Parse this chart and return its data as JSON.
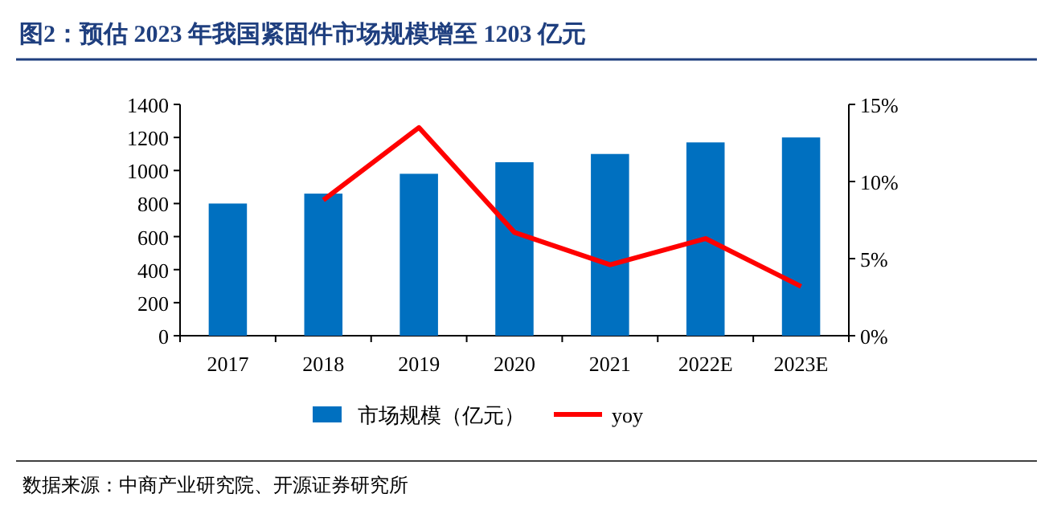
{
  "chart_data": {
    "type": "bar",
    "title": "图2：预估 2023 年我国紧固件市场规模增至 1203 亿元",
    "categories": [
      "2017",
      "2018",
      "2019",
      "2020",
      "2021",
      "2022E",
      "2023E"
    ],
    "series": [
      {
        "name": "市场规模（亿元）",
        "color": "#0070c0",
        "values": [
          800,
          860,
          980,
          1050,
          1100,
          1170,
          1200
        ]
      },
      {
        "name": "yoy",
        "type": "line",
        "axis": "y2",
        "color": "#ff0000",
        "values": [
          null,
          8.8,
          13.5,
          6.7,
          4.6,
          6.3,
          3.2
        ]
      }
    ],
    "ylim": [
      0,
      1400
    ],
    "yticks": [
      0,
      200,
      400,
      600,
      800,
      1000,
      1200,
      1400
    ],
    "y2lim": [
      0,
      15
    ],
    "y2ticks": [
      {
        "value": 0,
        "label": "0%"
      },
      {
        "value": 5,
        "label": "5%"
      },
      {
        "value": 10,
        "label": "10%"
      },
      {
        "value": 15,
        "label": "15%"
      }
    ],
    "legend": "bottom",
    "grid": false,
    "marker": "none",
    "annotations": [
      "数据来源：中商产业研究院、开源证券研究所"
    ]
  }
}
